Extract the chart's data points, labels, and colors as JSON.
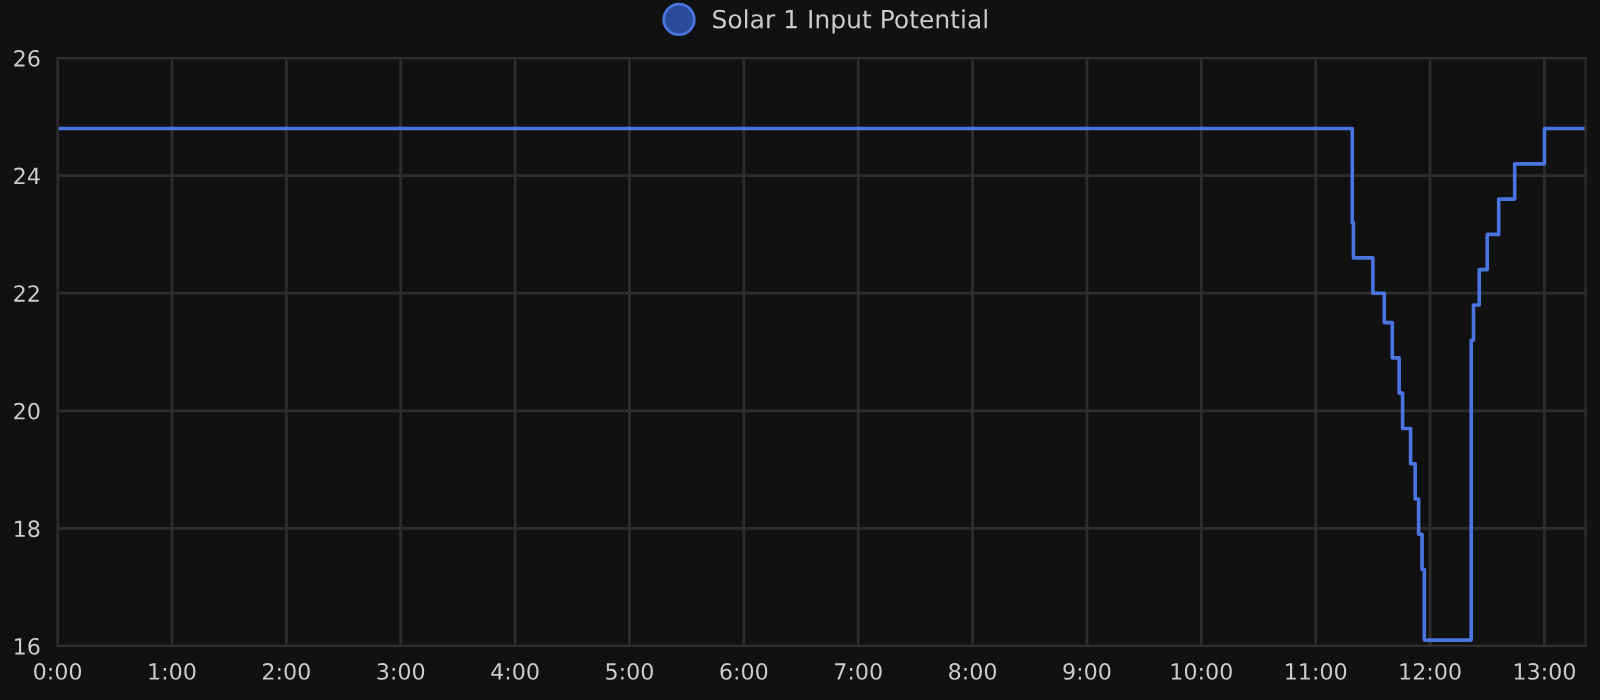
{
  "chart_data": {
    "type": "step",
    "series": [
      {
        "name": "Solar 1 Input Potential",
        "color": "#4a74e0",
        "x": [
          0,
          11.32,
          11.33,
          11.5,
          11.6,
          11.67,
          11.73,
          11.76,
          11.83,
          11.87,
          11.9,
          11.93,
          11.95,
          12.36,
          12.38,
          12.43,
          12.5,
          12.6,
          12.74,
          13.0,
          13.36
        ],
        "values": [
          24.8,
          23.2,
          22.6,
          22.0,
          21.5,
          20.9,
          20.3,
          19.7,
          19.1,
          18.5,
          17.9,
          17.3,
          16.1,
          21.2,
          21.8,
          22.4,
          23.0,
          23.6,
          24.2,
          24.8,
          24.8
        ]
      }
    ],
    "xlim": [
      0,
      13.36
    ],
    "xticks": [
      {
        "value": 0,
        "label": "0:00"
      },
      {
        "value": 1,
        "label": "1:00"
      },
      {
        "value": 2,
        "label": "2:00"
      },
      {
        "value": 3,
        "label": "3:00"
      },
      {
        "value": 4,
        "label": "4:00"
      },
      {
        "value": 5,
        "label": "5:00"
      },
      {
        "value": 6,
        "label": "6:00"
      },
      {
        "value": 7,
        "label": "7:00"
      },
      {
        "value": 8,
        "label": "8:00"
      },
      {
        "value": 9,
        "label": "9:00"
      },
      {
        "value": 10,
        "label": "10:00"
      },
      {
        "value": 11,
        "label": "11:00"
      },
      {
        "value": 12,
        "label": "12:00"
      },
      {
        "value": 13,
        "label": "13:00"
      }
    ],
    "ylim": [
      16,
      26
    ],
    "yticks": [
      16,
      18,
      20,
      22,
      24,
      26
    ],
    "grid": true,
    "legend": "top"
  }
}
